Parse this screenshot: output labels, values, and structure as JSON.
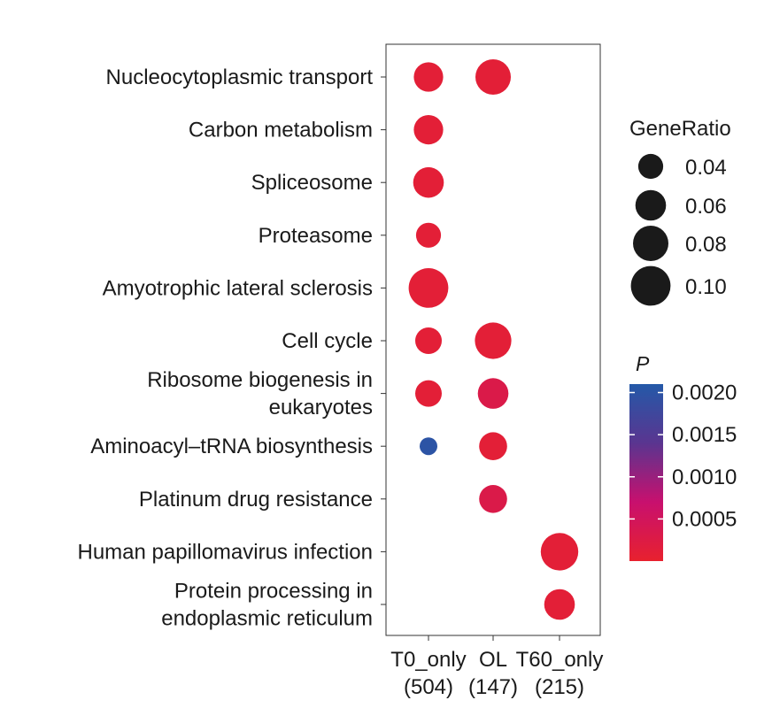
{
  "chart_data": {
    "type": "scatter",
    "title": "",
    "xlabel": "",
    "ylabel": "",
    "x_categories": [
      {
        "label": "T0_only",
        "count": "(504)"
      },
      {
        "label": "OL",
        "count": "(147)"
      },
      {
        "label": "T60_only",
        "count": "(215)"
      }
    ],
    "y_categories": [
      "Nucleocytoplasmic transport",
      "Carbon metabolism",
      "Spliceosome",
      "Proteasome",
      "Amyotrophic lateral sclerosis",
      "Cell cycle",
      "Ribosome biogenesis in eukaryotes",
      "Aminoacyl–tRNA biosynthesis",
      "Platinum drug resistance",
      "Human papillomavirus infection",
      "Protein processing in endoplasmic reticulum"
    ],
    "y_label_lines": [
      [
        "Nucleocytoplasmic transport"
      ],
      [
        "Carbon metabolism"
      ],
      [
        "Spliceosome"
      ],
      [
        "Proteasome"
      ],
      [
        "Amyotrophic lateral sclerosis"
      ],
      [
        "Cell cycle"
      ],
      [
        "Ribosome biogenesis in",
        "eukaryotes"
      ],
      [
        "Aminoacyl–tRNA biosynthesis"
      ],
      [
        "Platinum drug resistance"
      ],
      [
        "Human papillomavirus infection"
      ],
      [
        "Protein processing in",
        "endoplasmic reticulum"
      ]
    ],
    "points": [
      {
        "x": "T0_only",
        "y": "Nucleocytoplasmic transport",
        "gene_ratio": 0.055,
        "p": 0.0001
      },
      {
        "x": "OL",
        "y": "Nucleocytoplasmic transport",
        "gene_ratio": 0.08,
        "p": 0.0001
      },
      {
        "x": "T0_only",
        "y": "Carbon metabolism",
        "gene_ratio": 0.055,
        "p": 0.0001
      },
      {
        "x": "T0_only",
        "y": "Spliceosome",
        "gene_ratio": 0.06,
        "p": 0.0001
      },
      {
        "x": "T0_only",
        "y": "Proteasome",
        "gene_ratio": 0.04,
        "p": 0.0001
      },
      {
        "x": "T0_only",
        "y": "Amyotrophic lateral sclerosis",
        "gene_ratio": 0.1,
        "p": 0.0001
      },
      {
        "x": "T0_only",
        "y": "Cell cycle",
        "gene_ratio": 0.045,
        "p": 0.0001
      },
      {
        "x": "OL",
        "y": "Cell cycle",
        "gene_ratio": 0.085,
        "p": 0.0001
      },
      {
        "x": "T0_only",
        "y": "Ribosome biogenesis in eukaryotes",
        "gene_ratio": 0.045,
        "p": 0.0001
      },
      {
        "x": "OL",
        "y": "Ribosome biogenesis in eukaryotes",
        "gene_ratio": 0.06,
        "p": 0.0003
      },
      {
        "x": "T0_only",
        "y": "Aminoacyl–tRNA biosynthesis",
        "gene_ratio": 0.02,
        "p": 0.002
      },
      {
        "x": "OL",
        "y": "Aminoacyl–tRNA biosynthesis",
        "gene_ratio": 0.05,
        "p": 0.0001
      },
      {
        "x": "OL",
        "y": "Platinum drug resistance",
        "gene_ratio": 0.05,
        "p": 0.0003
      },
      {
        "x": "T60_only",
        "y": "Human papillomavirus infection",
        "gene_ratio": 0.09,
        "p": 0.0001
      },
      {
        "x": "T60_only",
        "y": "Protein processing in endoplasmic reticulum",
        "gene_ratio": 0.06,
        "p": 0.0001
      }
    ],
    "size_legend": {
      "title": "GeneRatio",
      "values": [
        0.04,
        0.06,
        0.08,
        0.1
      ],
      "labels": [
        "0.04",
        "0.06",
        "0.08",
        "0.10"
      ]
    },
    "color_legend": {
      "title": "P",
      "ticks": [
        {
          "value": 0.002,
          "label": "0.0020"
        },
        {
          "value": 0.0015,
          "label": "0.0015"
        },
        {
          "value": 0.001,
          "label": "0.0010"
        },
        {
          "value": 0.0005,
          "label": "0.0005"
        }
      ],
      "range": [
        0.0,
        0.0021
      ],
      "colors": [
        "#e8212e",
        "#c8106e",
        "#5a3590",
        "#2459a8"
      ]
    },
    "grid": false,
    "legend_position": "right"
  }
}
